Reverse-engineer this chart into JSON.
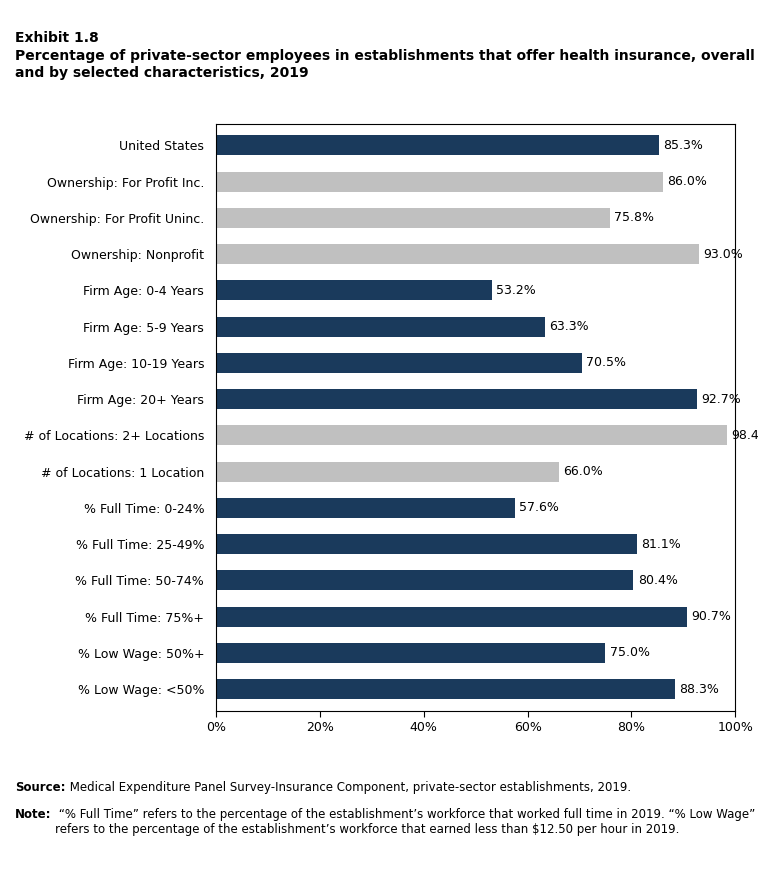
{
  "title_line1": "Exhibit 1.8",
  "title_line2": "Percentage of private-sector employees in establishments that offer health insurance, overall\nand by selected characteristics, 2019",
  "categories": [
    "United States",
    "Ownership: For Profit Inc.",
    "Ownership: For Profit Uninc.",
    "Ownership: Nonprofit",
    "Firm Age: 0-4 Years",
    "Firm Age: 5-9 Years",
    "Firm Age: 10-19 Years",
    "Firm Age: 20+ Years",
    "# of Locations: 2+ Locations",
    "# of Locations: 1 Location",
    "% Full Time: 0-24%",
    "% Full Time: 25-49%",
    "% Full Time: 50-74%",
    "% Full Time: 75%+",
    "% Low Wage: 50%+",
    "% Low Wage: <50%"
  ],
  "values": [
    85.3,
    86.0,
    75.8,
    93.0,
    53.2,
    63.3,
    70.5,
    92.7,
    98.4,
    66.0,
    57.6,
    81.1,
    80.4,
    90.7,
    75.0,
    88.3
  ],
  "colors": [
    "#1a3a5c",
    "#c0c0c0",
    "#c0c0c0",
    "#c0c0c0",
    "#1a3a5c",
    "#1a3a5c",
    "#1a3a5c",
    "#1a3a5c",
    "#c0c0c0",
    "#c0c0c0",
    "#1a3a5c",
    "#1a3a5c",
    "#1a3a5c",
    "#1a3a5c",
    "#1a3a5c",
    "#1a3a5c"
  ],
  "xlim": [
    0,
    100
  ],
  "xtick_labels": [
    "0%",
    "20%",
    "40%",
    "60%",
    "80%",
    "100%"
  ],
  "xtick_values": [
    0,
    20,
    40,
    60,
    80,
    100
  ],
  "source_bold": "Source:",
  "source_rest": " Medical Expenditure Panel Survey-Insurance Component, private-sector establishments, 2019.",
  "note_bold": "Note:",
  "note_rest": " “% Full Time” refers to the percentage of the establishment’s workforce that worked full time in 2019. “% Low Wage” refers to the percentage of the establishment’s workforce that earned less than $12.50 per hour in 2019.",
  "bar_height": 0.55,
  "value_fontsize": 9,
  "label_fontsize": 9,
  "tick_fontsize": 9,
  "title_fontsize": 10,
  "note_fontsize": 8.5,
  "background_color": "#ffffff"
}
